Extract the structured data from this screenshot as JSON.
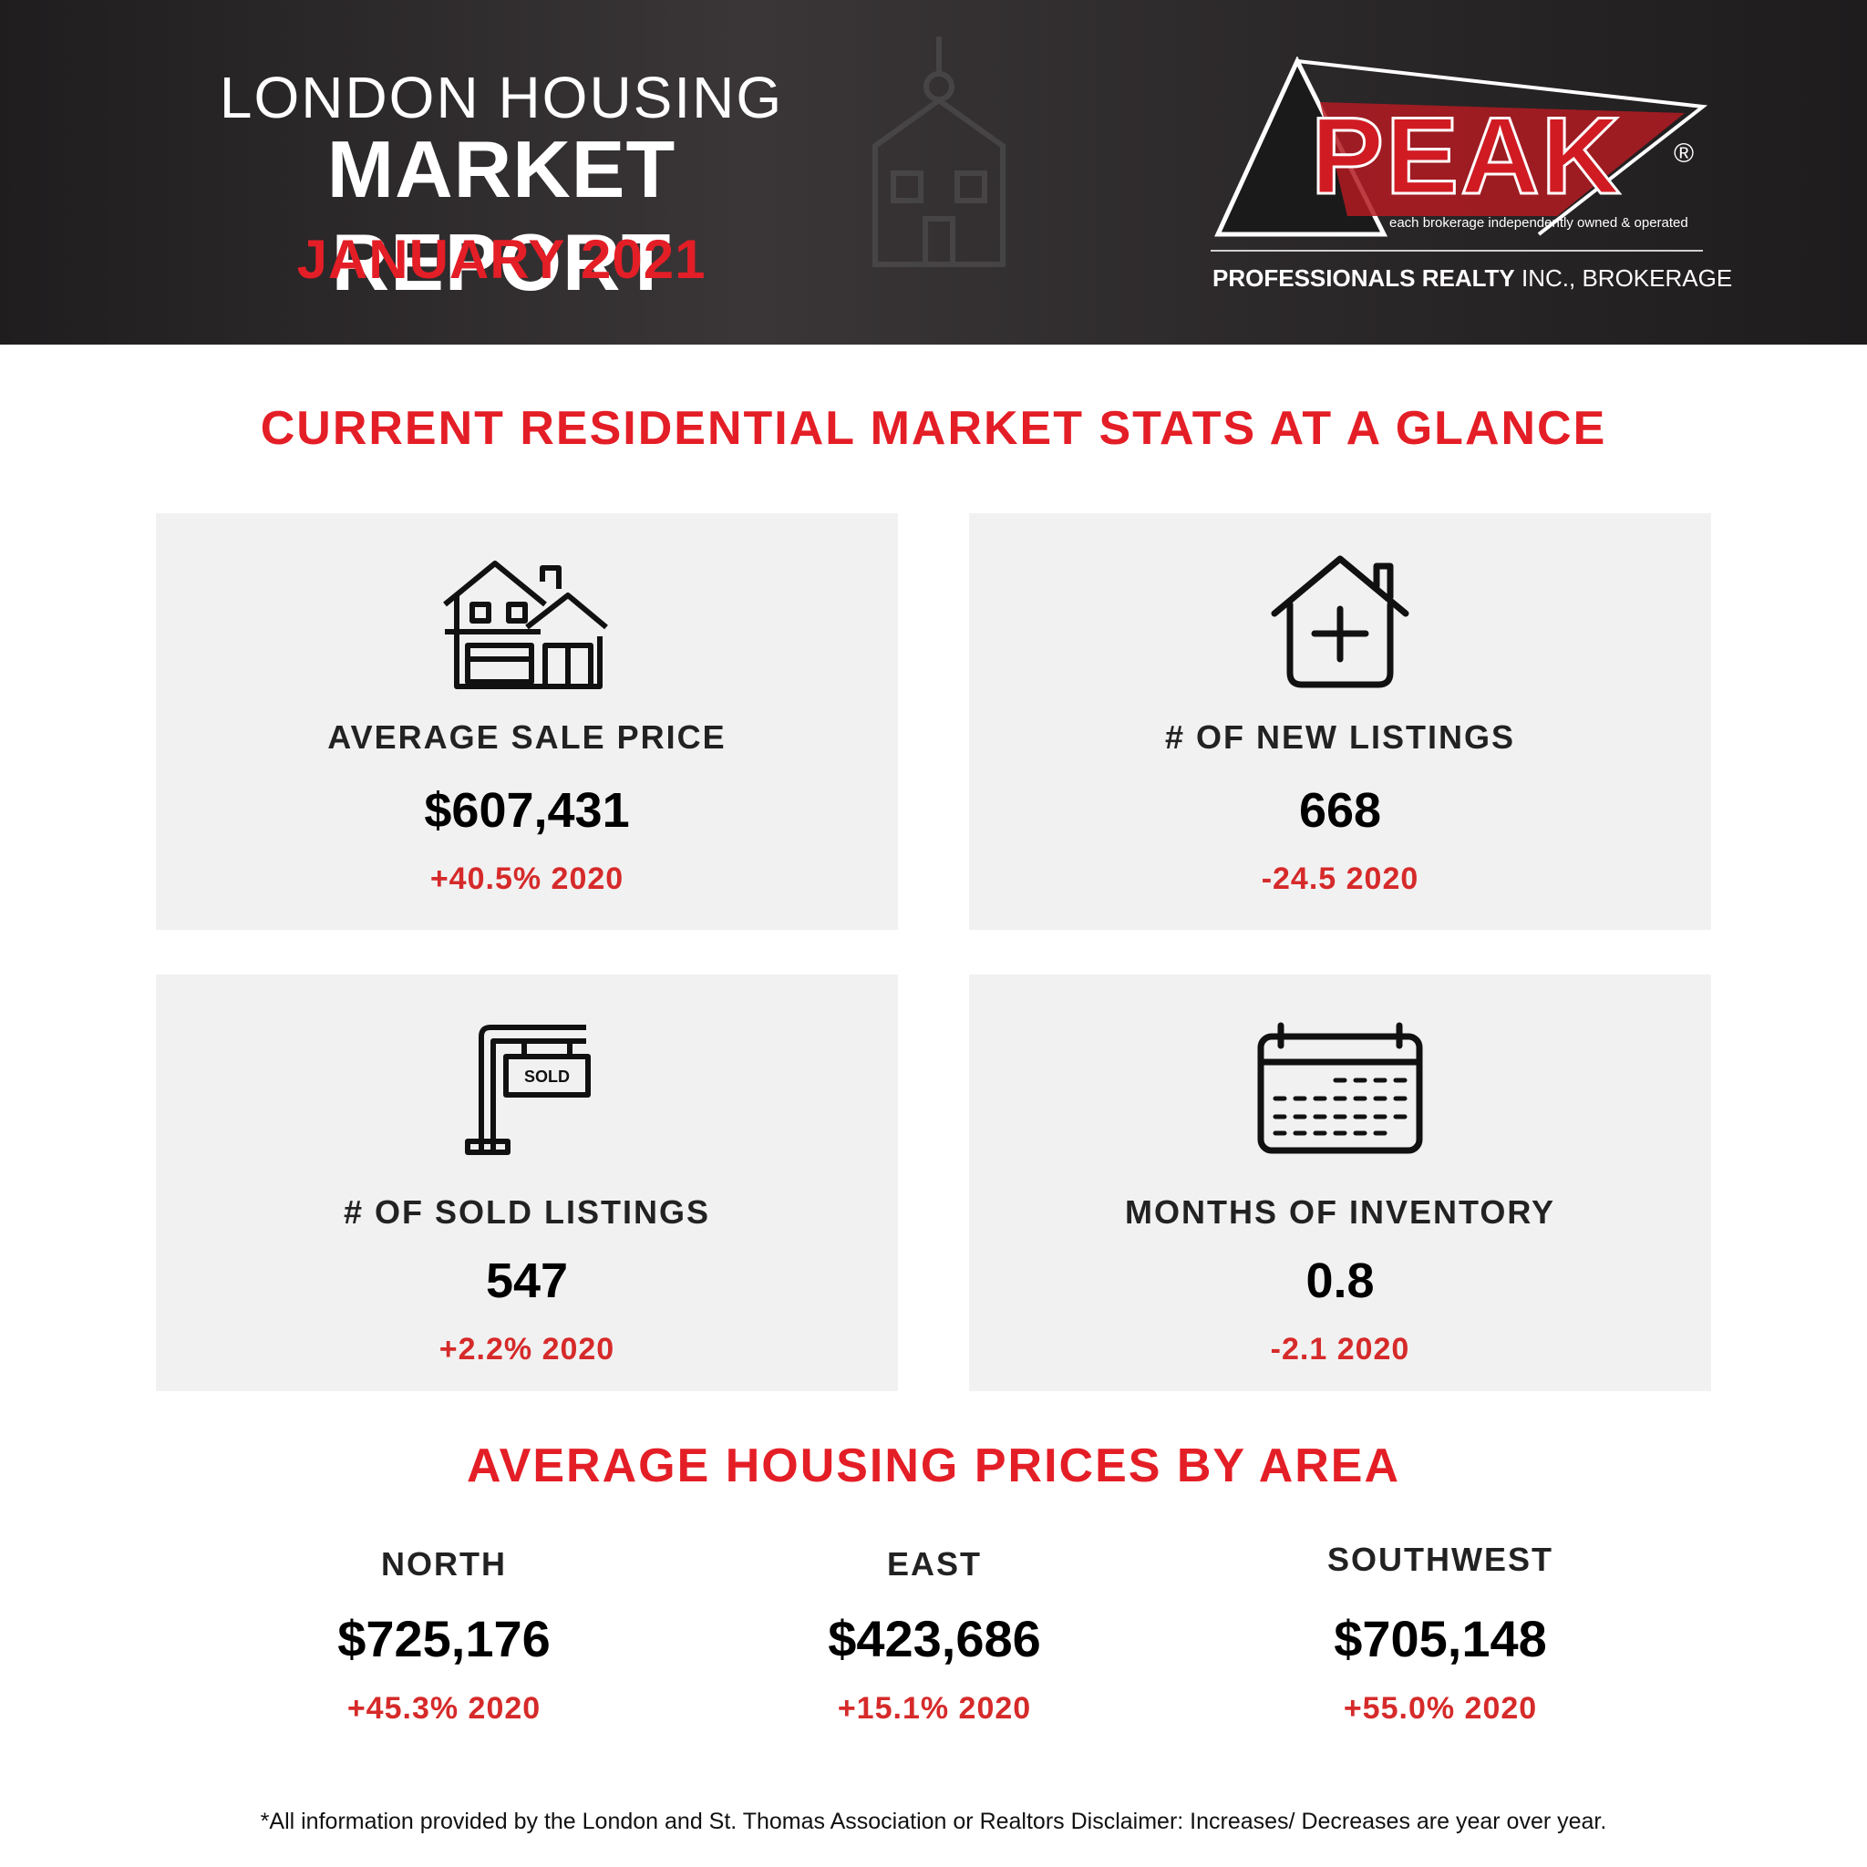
{
  "header": {
    "line1": "LONDON HOUSING",
    "line2": "MARKET REPORT",
    "line3": "JANUARY 2021"
  },
  "logo": {
    "name": "PEAK",
    "registered": "®",
    "tagline": "each brokerage independently owned & operated",
    "sub_bold": "PROFESSIONALS REALTY",
    "sub_rest": " INC., BROKERAGE"
  },
  "stats_title": "CURRENT RESIDENTIAL MARKET STATS AT A GLANCE",
  "stats": [
    {
      "icon": "house-icon",
      "label": "AVERAGE SALE PRICE",
      "value": "$607,431",
      "change": "+40.5% 2020"
    },
    {
      "icon": "house-plus-icon",
      "label": "# OF NEW LISTINGS",
      "value": "668",
      "change": "-24.5 2020"
    },
    {
      "icon": "sold-sign-icon",
      "label": "# OF SOLD LISTINGS",
      "value": "547",
      "change": "+2.2% 2020"
    },
    {
      "icon": "calendar-icon",
      "label": "MONTHS OF INVENTORY",
      "value": "0.8",
      "change": "-2.1 2020"
    }
  ],
  "sold_sign_text": "SOLD",
  "areas_title": "AVERAGE HOUSING PRICES BY AREA",
  "areas": [
    {
      "name": "NORTH",
      "price": "$725,176",
      "change": "+45.3% 2020"
    },
    {
      "name": "EAST",
      "price": "$423,686",
      "change": "+15.1% 2020"
    },
    {
      "name": "SOUTHWEST",
      "price": "$705,148",
      "change": "+55.0% 2020"
    }
  ],
  "footer": "*All information provided by the London and St. Thomas Association or Realtors  Disclaimer: Increases/ Decreases are year over year.",
  "colors": {
    "accent": "#e41e26",
    "header_bg": "#2b2829",
    "card_bg": "#f1f1f1"
  }
}
